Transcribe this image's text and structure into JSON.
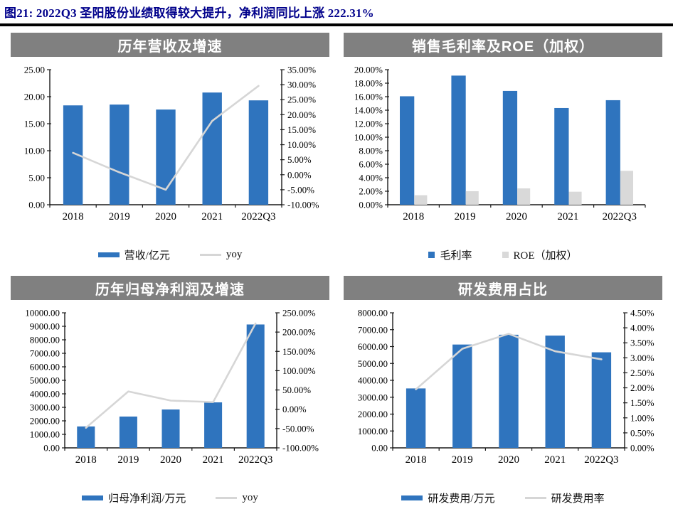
{
  "page": {
    "title": "图21:  2022Q3 圣阳股份业绩取得较大提升，净利润同比上涨 222.31%"
  },
  "colors": {
    "bar_blue": "#2F74BE",
    "bar_gray": "#D9D9D9",
    "line_gray": "#D6D6D6",
    "header_bg": "#808080",
    "header_text": "#FFFFFF",
    "title_text": "#00008B",
    "axis": "#1A1A1A",
    "divider": "#000000"
  },
  "chart_data": [
    {
      "type": "bar",
      "title": "历年营收及增速",
      "categories": [
        "2018",
        "2019",
        "2020",
        "2021",
        "2022Q3"
      ],
      "series": [
        {
          "name": "营收/亿元",
          "type": "bar",
          "axis": "left",
          "color_key": "bar_blue",
          "values": [
            18.39,
            18.54,
            17.62,
            20.77,
            19.32
          ]
        },
        {
          "name": "yoy",
          "type": "line",
          "axis": "right",
          "color_key": "line_gray",
          "values": [
            7.3,
            0.8,
            -5.0,
            17.9,
            29.6
          ]
        }
      ],
      "left_axis": {
        "min": 0,
        "max": 25,
        "step": 5,
        "decimals": 2,
        "suffix": ""
      },
      "right_axis": {
        "min": -10,
        "max": 35,
        "step": 5,
        "decimals": 2,
        "suffix": "%"
      },
      "legend": [
        {
          "label": "营收/亿元",
          "marker": "bar",
          "color_key": "bar_blue"
        },
        {
          "label": "yoy",
          "marker": "line",
          "color_key": "line_gray"
        }
      ],
      "legend_position": "bottom",
      "grid": false
    },
    {
      "type": "bar",
      "title": "销售毛利率及ROE（加权）",
      "categories": [
        "2018",
        "2019",
        "2020",
        "2021",
        "2022Q3"
      ],
      "series": [
        {
          "name": "毛利率",
          "type": "bar",
          "axis": "left",
          "color_key": "bar_blue",
          "values": [
            16.06,
            19.12,
            16.85,
            14.32,
            15.48
          ]
        },
        {
          "name": "ROE（加权）",
          "type": "bar",
          "axis": "left",
          "color_key": "bar_gray",
          "values": [
            1.41,
            2.01,
            2.42,
            1.93,
            5.02
          ]
        }
      ],
      "left_axis": {
        "min": 0,
        "max": 20,
        "step": 2,
        "decimals": 2,
        "suffix": "%"
      },
      "legend": [
        {
          "label": "毛利率",
          "marker": "square",
          "color_key": "bar_blue"
        },
        {
          "label": "ROE（加权）",
          "marker": "square",
          "color_key": "bar_gray"
        }
      ],
      "legend_position": "bottom",
      "grid": false
    },
    {
      "type": "bar",
      "title": "历年归母净利润及增速",
      "categories": [
        "2018",
        "2019",
        "2020",
        "2021",
        "2022Q3"
      ],
      "series": [
        {
          "name": "归母净利润/万元",
          "type": "bar",
          "axis": "left",
          "color_key": "bar_blue",
          "values": [
            1586,
            2319,
            2841,
            3369,
            9134
          ]
        },
        {
          "name": "yoy",
          "type": "line",
          "axis": "right",
          "color_key": "line_gray",
          "values": [
            -47.9,
            46.2,
            22.5,
            18.6,
            222.31
          ]
        }
      ],
      "left_axis": {
        "min": 0,
        "max": 10000,
        "step": 1000,
        "decimals": 2,
        "suffix": ""
      },
      "right_axis": {
        "min": -100,
        "max": 250,
        "step": 50,
        "decimals": 2,
        "suffix": "%"
      },
      "legend": [
        {
          "label": "归母净利润/万元",
          "marker": "bar",
          "color_key": "bar_blue"
        },
        {
          "label": "yoy",
          "marker": "line",
          "color_key": "line_gray"
        }
      ],
      "legend_position": "bottom",
      "grid": false
    },
    {
      "type": "bar",
      "title": "研发费用占比",
      "categories": [
        "2018",
        "2019",
        "2020",
        "2021",
        "2022Q3"
      ],
      "series": [
        {
          "name": "研发费用/万元",
          "type": "bar",
          "axis": "left",
          "color_key": "bar_blue",
          "values": [
            3520,
            6120,
            6700,
            6650,
            5660
          ]
        },
        {
          "name": "研发费用率",
          "type": "line",
          "axis": "right",
          "color_key": "line_gray",
          "values": [
            1.95,
            3.3,
            3.8,
            3.22,
            2.95
          ]
        }
      ],
      "left_axis": {
        "min": 0,
        "max": 8000,
        "step": 1000,
        "decimals": 2,
        "suffix": ""
      },
      "right_axis": {
        "min": 0,
        "max": 4.5,
        "step": 0.5,
        "decimals": 2,
        "suffix": "%"
      },
      "legend": [
        {
          "label": "研发费用/万元",
          "marker": "bar",
          "color_key": "bar_blue"
        },
        {
          "label": "研发费用率",
          "marker": "line",
          "color_key": "line_gray"
        }
      ],
      "legend_position": "bottom",
      "grid": false
    }
  ]
}
